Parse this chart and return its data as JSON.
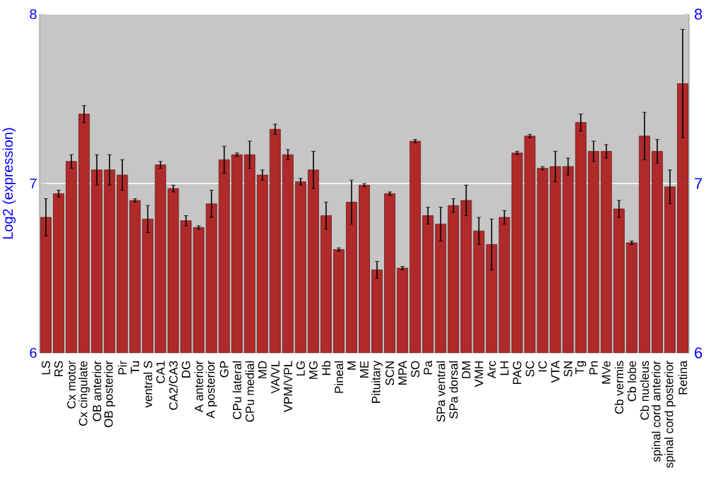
{
  "chart_data": {
    "type": "bar",
    "ylabel": "Log2 (expression)",
    "categories": [
      "LS",
      "RS",
      "Cx motor",
      "Cx cingulate",
      "OB anterior",
      "OB posterior",
      "Pir",
      "Tu",
      "ventral S",
      "CA1",
      "CA2/CA3",
      "DG",
      "A anterior",
      "A posterior",
      "GP",
      "CPu lateral",
      "CPu medial",
      "MD",
      "VA/VL",
      "VPM/VPL",
      "LG",
      "MG",
      "Hb",
      "Pineal",
      "M",
      "ME",
      "Pituitary",
      "SCN",
      "MPA",
      "SO",
      "Pa",
      "SPa ventral",
      "SPa dorsal",
      "DM",
      "VMH",
      "Arc",
      "LH",
      "PAG",
      "SC",
      "IC",
      "VTA",
      "SN",
      "Tg",
      "Pn",
      "MVe",
      "Cb vermis",
      "Cb lobe",
      "Cb nucleus",
      "spinal cord anterior",
      "spinal cord posterior",
      "Retina"
    ],
    "values": [
      6.8,
      6.94,
      7.13,
      7.41,
      7.08,
      7.08,
      7.05,
      6.9,
      6.79,
      7.11,
      6.97,
      6.78,
      6.74,
      6.88,
      7.14,
      7.17,
      7.17,
      7.05,
      7.32,
      7.17,
      7.01,
      7.08,
      6.81,
      6.61,
      6.89,
      6.99,
      6.49,
      6.94,
      6.5,
      7.25,
      6.81,
      6.76,
      6.87,
      6.9,
      6.72,
      6.64,
      6.8,
      7.18,
      7.28,
      7.09,
      7.1,
      7.1,
      7.36,
      7.19,
      7.19,
      6.85,
      6.65,
      7.28,
      7.19,
      6.98,
      7.59
    ],
    "errors": [
      0.11,
      0.02,
      0.04,
      0.05,
      0.09,
      0.09,
      0.09,
      0.01,
      0.08,
      0.02,
      0.02,
      0.03,
      0.01,
      0.08,
      0.08,
      0.01,
      0.08,
      0.03,
      0.03,
      0.03,
      0.02,
      0.11,
      0.08,
      0.01,
      0.13,
      0.01,
      0.05,
      0.01,
      0.01,
      0.01,
      0.05,
      0.1,
      0.04,
      0.09,
      0.08,
      0.15,
      0.04,
      0.01,
      0.01,
      0.01,
      0.09,
      0.05,
      0.05,
      0.06,
      0.04,
      0.05,
      0.01,
      0.14,
      0.07,
      0.1,
      0.32
    ],
    "color": "#b02a2a",
    "ylim": [
      6,
      8
    ],
    "yticks": [
      6,
      7,
      8
    ],
    "y2lim": [
      6,
      8
    ],
    "y2ticks": [
      6,
      7,
      8
    ],
    "grid": "y"
  }
}
